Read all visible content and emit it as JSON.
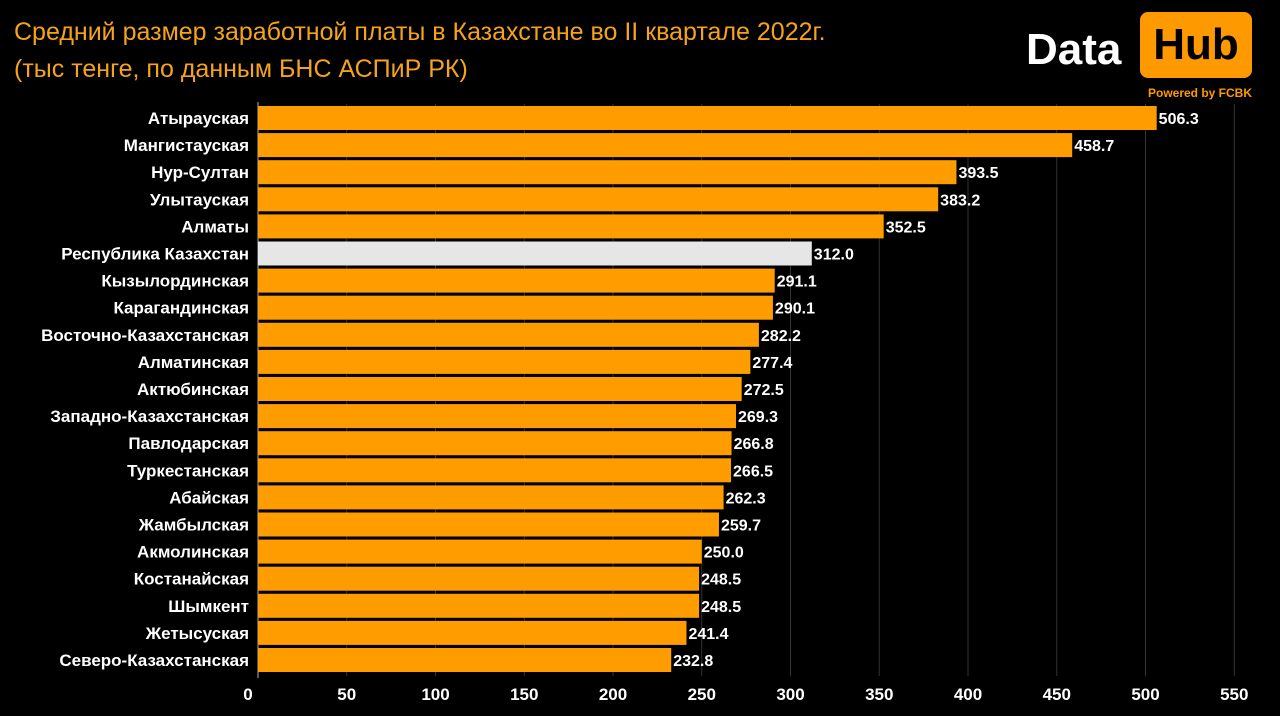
{
  "title": {
    "line1": "Средний размер заработной платы в Казахстане во II квартале 2022г.",
    "line2": "(тыс тенге, по данным БНС АСПиР РК)"
  },
  "logo": {
    "word1": "Data",
    "word2": "Hub",
    "powered": "Powered by FCBK"
  },
  "colors": {
    "bar": "#ff9d00",
    "highlight": "#e6e6e6",
    "title": "#f5a31a",
    "background": "#000000",
    "grid": "#333333"
  },
  "chart_data": {
    "type": "bar",
    "orientation": "horizontal",
    "title": "Средний размер заработной платы в Казахстане во II квартале 2022г.",
    "subtitle": "(тыс тенге, по данным БНС АСПиР РК)",
    "xlim": [
      0,
      550
    ],
    "xticks": [
      0,
      50,
      100,
      150,
      200,
      250,
      300,
      350,
      400,
      450,
      500,
      550
    ],
    "grid": true,
    "legend": "none",
    "highlight_category": "Республика Казахстан",
    "categories": [
      "Атырауская",
      "Мангистауская",
      "Нур-Султан",
      "Улытауская",
      "Алматы",
      "Республика Казахстан",
      "Кызылординская",
      "Карагандинская",
      "Восточно-Казахстанская",
      "Алматинская",
      "Актюбинская",
      "Западно-Казахстанская",
      "Павлодарская",
      "Туркестанская",
      "Абайская",
      "Жамбылская",
      "Акмолинская",
      "Костанайская",
      "Шымкент",
      "Жетысуская",
      "Северо-Казахстанская"
    ],
    "values": [
      506.3,
      458.7,
      393.5,
      383.2,
      352.5,
      312.0,
      291.1,
      290.1,
      282.2,
      277.4,
      272.5,
      269.3,
      266.8,
      266.5,
      262.3,
      259.7,
      250.0,
      248.5,
      248.5,
      241.4,
      232.8
    ],
    "value_labels": [
      "506.3",
      "458.7",
      "393.5",
      "383.2",
      "352.5",
      "312.0",
      "291.1",
      "290.1",
      "282.2",
      "277.4",
      "272.5",
      "269.3",
      "266.8",
      "266.5",
      "262.3",
      "259.7",
      "250.0",
      "248.5",
      "248.5",
      "241.4",
      "232.8"
    ]
  }
}
